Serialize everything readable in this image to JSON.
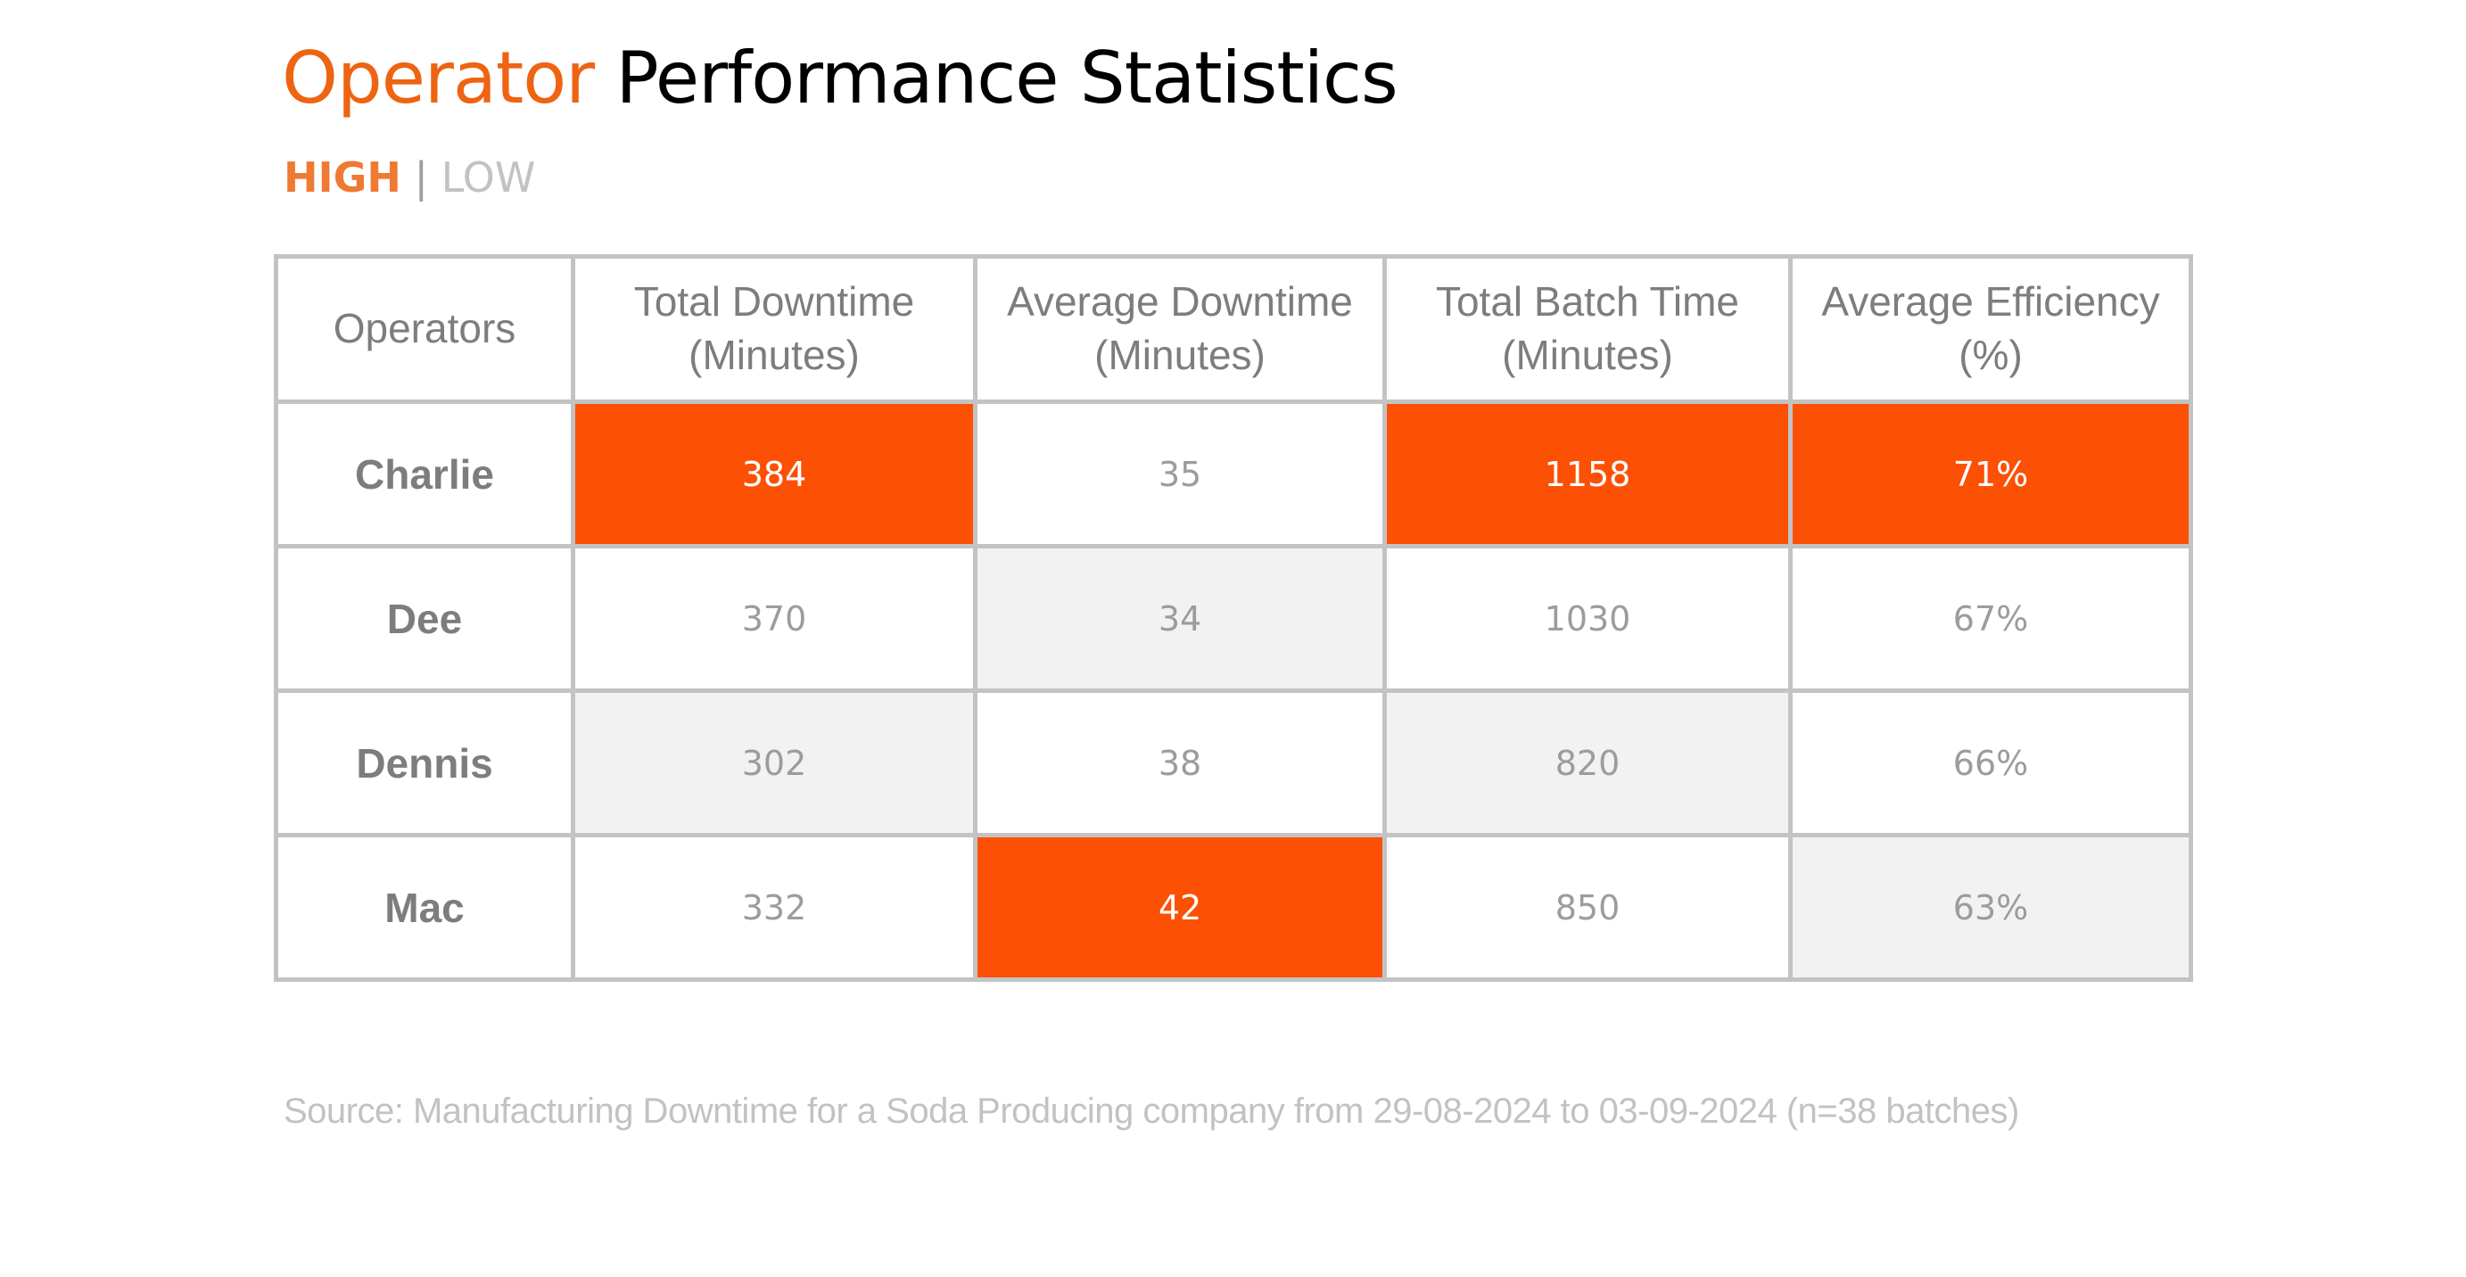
{
  "title": {
    "accent": "Operator",
    "rest": "Performance Statistics"
  },
  "legend": {
    "high": "HIGH",
    "separator": "|",
    "low": "LOW"
  },
  "colors": {
    "high": "#fc5005",
    "low": "#f2f2f2",
    "accent": "#ee6413",
    "border": "#c3c3c3"
  },
  "chart_data": {
    "type": "table",
    "columns": [
      [
        "Operators"
      ],
      [
        "Total Downtime",
        "(Minutes)"
      ],
      [
        "Average Downtime",
        "(Minutes)"
      ],
      [
        "Total Batch Time",
        "(Minutes)"
      ],
      [
        "Average Efficiency",
        "(%)"
      ]
    ],
    "rows": [
      {
        "operator": "Charlie",
        "values": [
          "384",
          "35",
          "1158",
          "71%"
        ],
        "levels": [
          "high",
          "none",
          "high",
          "high"
        ]
      },
      {
        "operator": "Dee",
        "values": [
          "370",
          "34",
          "1030",
          "67%"
        ],
        "levels": [
          "none",
          "low",
          "none",
          "none"
        ]
      },
      {
        "operator": "Dennis",
        "values": [
          "302",
          "38",
          "820",
          "66%"
        ],
        "levels": [
          "low",
          "none",
          "low",
          "none"
        ]
      },
      {
        "operator": "Mac",
        "values": [
          "332",
          "42",
          "850",
          "63%"
        ],
        "levels": [
          "none",
          "high",
          "none",
          "low"
        ]
      }
    ]
  },
  "source": "Source: Manufacturing Downtime for a Soda Producing company from 29-08-2024 to 03-09-2024 (n=38 batches)"
}
